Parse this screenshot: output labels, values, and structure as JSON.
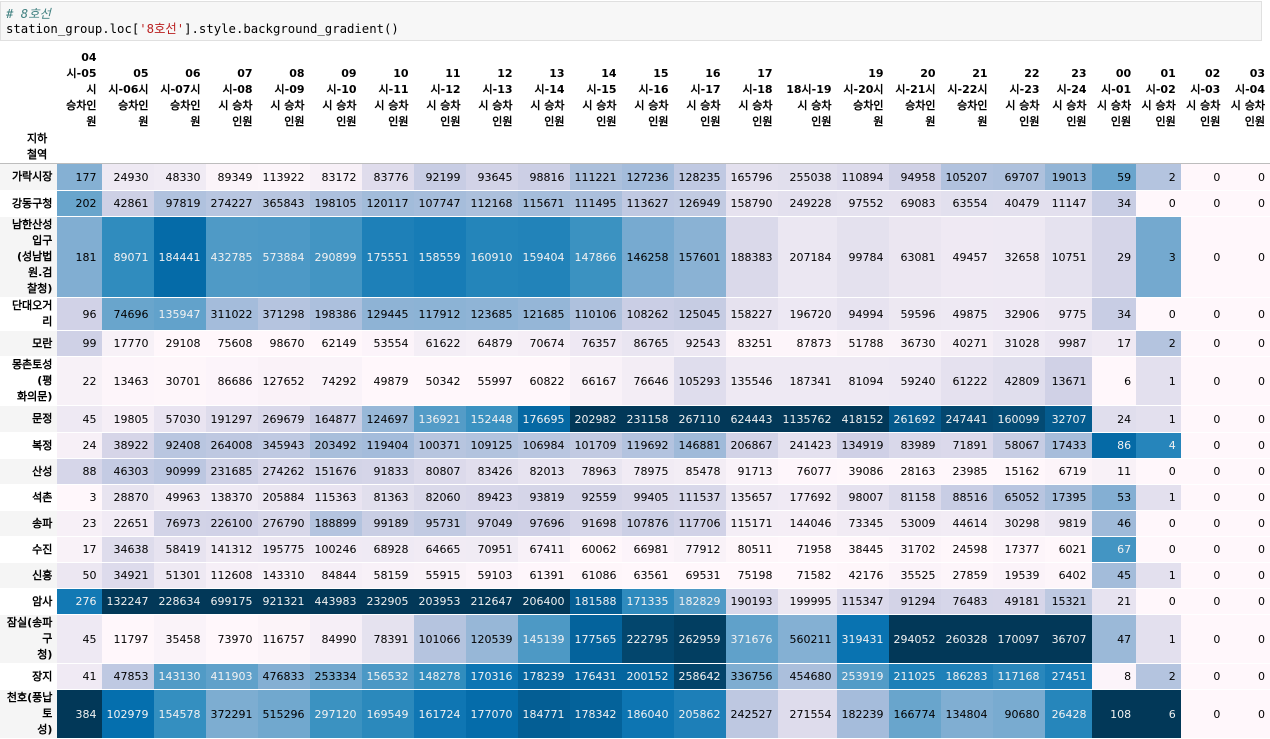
{
  "notebook": {
    "comment": "# 8호선",
    "code_var": "station_group",
    "code_loc": ".loc[",
    "code_str": "'8호선'",
    "code_rest": "].style.background_gradient()"
  },
  "table": {
    "index_name": "지하철역",
    "columns": [
      "04\n시-05시\n승차인\n원",
      "05\n시-06시\n승차인\n원",
      "06\n시-07시\n승차인\n원",
      "07시-08\n시 승차\n인원",
      "08시-09\n시 승차\n인원",
      "09시-10\n시 승차\n인원",
      "10시-11\n시 승차\n인원",
      "11시-12\n시 승차\n인원",
      "12시-13\n시 승차\n인원",
      "13시-14\n시 승차\n인원",
      "14시-15\n시 승차\n인원",
      "15시-16\n시 승차\n인원",
      "16시-17\n시 승차\n인원",
      "17시-18\n시 승차\n인원",
      "18시-19\n시 승차\n인원",
      "19\n시-20시\n승차인\n원",
      "20\n시-21시\n승차인\n원",
      "21\n시-22시\n승차인\n원",
      "22시-23\n시 승차\n인원",
      "23시-24\n시 승차\n인원",
      "00시-01\n시 승차\n인원",
      "01시-02\n시 승차\n인원",
      "02시-03\n시 승차\n인원",
      "03시-04\n시 승차\n인원"
    ],
    "rows": [
      {
        "name": "가락시장",
        "values": [
          177,
          24930,
          48330,
          89349,
          113922,
          83172,
          83776,
          92199,
          93645,
          98816,
          111221,
          127236,
          128235,
          165796,
          255038,
          110894,
          94958,
          105207,
          69707,
          19013,
          59,
          2,
          0,
          0
        ]
      },
      {
        "name": "강동구청",
        "values": [
          202,
          42861,
          97819,
          274227,
          365843,
          198105,
          120117,
          107747,
          112168,
          115671,
          111495,
          113627,
          126949,
          158790,
          249228,
          97552,
          69083,
          63554,
          40479,
          11147,
          34,
          0,
          0,
          0
        ]
      },
      {
        "name": "남한산성입구\n(성남법원.검\n찰청)",
        "values": [
          181,
          89071,
          184441,
          432785,
          573884,
          290899,
          175551,
          158559,
          160910,
          159404,
          147866,
          146258,
          157601,
          188383,
          207184,
          99784,
          63081,
          49457,
          32658,
          10751,
          29,
          3,
          0,
          0
        ]
      },
      {
        "name": "단대오거리",
        "values": [
          96,
          74696,
          135947,
          311022,
          371298,
          198386,
          129445,
          117912,
          123685,
          121685,
          110106,
          108262,
          125045,
          158227,
          196720,
          94994,
          59596,
          49875,
          32906,
          9775,
          34,
          0,
          0,
          0
        ]
      },
      {
        "name": "모란",
        "values": [
          99,
          17770,
          29108,
          75608,
          98670,
          62149,
          53554,
          61622,
          64879,
          70674,
          76357,
          86765,
          92543,
          83251,
          87873,
          51788,
          36730,
          40271,
          31028,
          9987,
          17,
          2,
          0,
          0
        ]
      },
      {
        "name": "몽촌토성(평\n화의문)",
        "values": [
          22,
          13463,
          30701,
          86686,
          127652,
          74292,
          49879,
          50342,
          55997,
          60822,
          66167,
          76646,
          105293,
          135546,
          187341,
          81094,
          59240,
          61222,
          42809,
          13671,
          6,
          1,
          0,
          0
        ]
      },
      {
        "name": "문정",
        "values": [
          45,
          19805,
          57030,
          191297,
          269679,
          164877,
          124697,
          136921,
          152448,
          176695,
          202982,
          231158,
          267110,
          624443,
          1135762,
          418152,
          261692,
          247441,
          160099,
          32707,
          24,
          1,
          0,
          0
        ]
      },
      {
        "name": "복정",
        "values": [
          24,
          38922,
          92408,
          264008,
          345943,
          203492,
          119404,
          100371,
          109125,
          106984,
          101709,
          119692,
          146881,
          206867,
          241423,
          134919,
          83989,
          71891,
          58067,
          17433,
          86,
          4,
          0,
          0
        ]
      },
      {
        "name": "산성",
        "values": [
          88,
          46303,
          90999,
          231685,
          274262,
          151676,
          91833,
          80807,
          83426,
          82013,
          78963,
          78975,
          85478,
          91713,
          76077,
          39086,
          28163,
          23985,
          15162,
          6719,
          11,
          0,
          0,
          0
        ]
      },
      {
        "name": "석촌",
        "values": [
          3,
          28870,
          49963,
          138370,
          205884,
          115363,
          81363,
          82060,
          89423,
          93819,
          92559,
          99405,
          111537,
          135657,
          177692,
          98007,
          81158,
          88516,
          65052,
          17395,
          53,
          1,
          0,
          0
        ]
      },
      {
        "name": "송파",
        "values": [
          23,
          22651,
          76973,
          226100,
          276790,
          188899,
          99189,
          95731,
          97049,
          97696,
          91698,
          107876,
          117706,
          115171,
          144046,
          73345,
          53009,
          44614,
          30298,
          9819,
          46,
          0,
          0,
          0
        ]
      },
      {
        "name": "수진",
        "values": [
          17,
          34638,
          58419,
          141312,
          195775,
          100246,
          68928,
          64665,
          70951,
          67411,
          60062,
          66981,
          77912,
          80511,
          71958,
          38445,
          31702,
          24598,
          17377,
          6021,
          67,
          0,
          0,
          0
        ]
      },
      {
        "name": "신흥",
        "values": [
          50,
          34921,
          51301,
          112608,
          143310,
          84844,
          58159,
          55915,
          59103,
          61391,
          61086,
          63561,
          69531,
          75198,
          71582,
          42176,
          35525,
          27859,
          19539,
          6402,
          45,
          1,
          0,
          0
        ]
      },
      {
        "name": "암사",
        "values": [
          276,
          132247,
          228634,
          699175,
          921321,
          443983,
          232905,
          203953,
          212647,
          206400,
          181588,
          171335,
          182829,
          190193,
          199995,
          115347,
          91294,
          76483,
          49181,
          15321,
          21,
          0,
          0,
          0
        ]
      },
      {
        "name": "잠실(송파구\n청)",
        "values": [
          45,
          11797,
          35458,
          73970,
          116757,
          84990,
          78391,
          101066,
          120539,
          145139,
          177565,
          222795,
          262959,
          371676,
          560211,
          319431,
          294052,
          260328,
          170097,
          36707,
          47,
          1,
          0,
          0
        ]
      },
      {
        "name": "장지",
        "values": [
          41,
          47853,
          143130,
          411903,
          476833,
          253334,
          156532,
          148278,
          170316,
          178239,
          176431,
          200152,
          258642,
          336756,
          454680,
          253919,
          211025,
          186283,
          117168,
          27451,
          8,
          2,
          0,
          0
        ]
      },
      {
        "name": "천호(풍납토\n성)",
        "values": [
          384,
          102979,
          154578,
          372291,
          515296,
          297120,
          169549,
          161724,
          177070,
          184771,
          178342,
          186040,
          205862,
          242527,
          271554,
          182239,
          166774,
          134804,
          90680,
          26428,
          108,
          6,
          0,
          0
        ]
      }
    ]
  },
  "colors": {
    "gradient_low": "#fff7fb",
    "gradient_high": "#023858",
    "colormap": "PuBu"
  }
}
